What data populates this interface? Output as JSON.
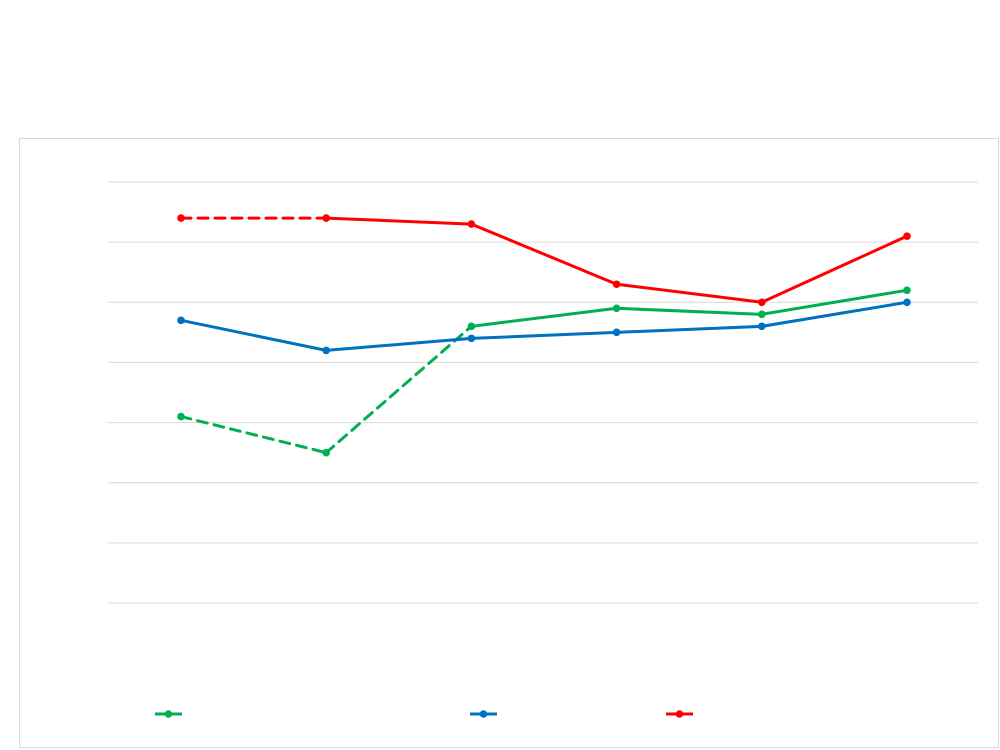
{
  "chart_data": {
    "type": "line",
    "title": "",
    "xlabel": "",
    "ylabel": "",
    "grid": true,
    "legend_position": "bottom",
    "categories": [
      "",
      "",
      "",
      "",
      "",
      ""
    ],
    "ylim": [
      0,
      7
    ],
    "yticks": [
      0,
      1,
      2,
      3,
      4,
      5,
      6,
      7
    ],
    "series": [
      {
        "name": "",
        "color": "#00b050",
        "values": [
          3.1,
          2.5,
          4.6,
          4.9,
          4.8,
          5.2
        ],
        "dashed_segments": [
          0,
          1
        ]
      },
      {
        "name": "",
        "color": "#0070c0",
        "values": [
          4.7,
          4.2,
          4.4,
          4.5,
          4.6,
          5.0
        ],
        "dashed_segments": []
      },
      {
        "name": "",
        "color": "#ff0000",
        "values": [
          6.4,
          6.4,
          6.3,
          5.3,
          5.0,
          6.1
        ],
        "dashed_segments": [
          0
        ]
      }
    ]
  }
}
